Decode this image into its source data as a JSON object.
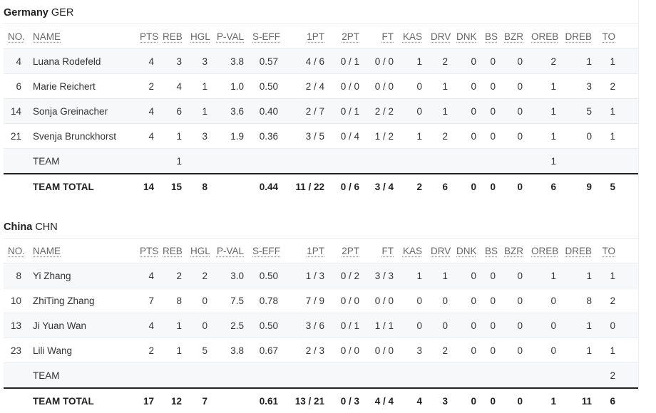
{
  "columns": [
    "NO.",
    "NAME",
    "PTS",
    "REB",
    "HGL",
    "P-VAL",
    "S-EFF",
    "1PT",
    "2PT",
    "FT",
    "KAS",
    "DRV",
    "DNK",
    "BS",
    "BZR",
    "OREB",
    "DREB",
    "TO"
  ],
  "teams": [
    {
      "name": "Germany",
      "code": "GER",
      "rows": [
        [
          "4",
          "Luana Rodefeld",
          "4",
          "3",
          "3",
          "3.8",
          "0.57",
          "4 / 6",
          "0 / 1",
          "0 / 0",
          "1",
          "2",
          "0",
          "0",
          "0",
          "2",
          "1",
          "1"
        ],
        [
          "6",
          "Marie Reichert",
          "2",
          "4",
          "1",
          "1.0",
          "0.50",
          "2 / 4",
          "0 / 0",
          "0 / 0",
          "0",
          "1",
          "0",
          "0",
          "0",
          "1",
          "3",
          "2"
        ],
        [
          "14",
          "Sonja Greinacher",
          "4",
          "6",
          "1",
          "3.6",
          "0.40",
          "2 / 7",
          "0 / 1",
          "2 / 2",
          "0",
          "1",
          "0",
          "0",
          "0",
          "1",
          "5",
          "1"
        ],
        [
          "21",
          "Svenja Brunckhorst",
          "4",
          "1",
          "3",
          "1.9",
          "0.36",
          "3 / 5",
          "0 / 4",
          "1 / 2",
          "1",
          "2",
          "0",
          "0",
          "0",
          "1",
          "0",
          "1"
        ],
        [
          "",
          "TEAM",
          "",
          "1",
          "",
          "",
          "",
          "",
          "",
          "",
          "",
          "",
          "",
          "",
          "",
          "1",
          "",
          ""
        ]
      ],
      "total": [
        "",
        "TEAM TOTAL",
        "14",
        "15",
        "8",
        "",
        "0.44",
        "11 / 22",
        "0 / 6",
        "3 / 4",
        "2",
        "6",
        "0",
        "0",
        "0",
        "6",
        "9",
        "5"
      ]
    },
    {
      "name": "China",
      "code": "CHN",
      "rows": [
        [
          "8",
          "Yi Zhang",
          "4",
          "2",
          "2",
          "3.0",
          "0.50",
          "1 / 3",
          "0 / 2",
          "3 / 3",
          "1",
          "1",
          "0",
          "0",
          "0",
          "1",
          "1",
          "1"
        ],
        [
          "10",
          "ZhiTing Zhang",
          "7",
          "8",
          "0",
          "7.5",
          "0.78",
          "7 / 9",
          "0 / 0",
          "0 / 0",
          "0",
          "0",
          "0",
          "0",
          "0",
          "0",
          "8",
          "2"
        ],
        [
          "13",
          "Ji Yuan Wan",
          "4",
          "1",
          "0",
          "2.5",
          "0.50",
          "3 / 6",
          "0 / 1",
          "1 / 1",
          "0",
          "0",
          "0",
          "0",
          "0",
          "0",
          "1",
          "0"
        ],
        [
          "23",
          "Lili Wang",
          "2",
          "1",
          "5",
          "3.8",
          "0.67",
          "2 / 3",
          "0 / 0",
          "0 / 0",
          "3",
          "2",
          "0",
          "0",
          "0",
          "0",
          "1",
          "1"
        ],
        [
          "",
          "TEAM",
          "",
          "",
          "",
          "",
          "",
          "",
          "",
          "",
          "",
          "",
          "",
          "",
          "",
          "",
          "",
          "2"
        ]
      ],
      "total": [
        "",
        "TEAM TOTAL",
        "17",
        "12",
        "7",
        "",
        "0.61",
        "13 / 21",
        "0 / 3",
        "4 / 4",
        "4",
        "3",
        "0",
        "0",
        "0",
        "1",
        "11",
        "6"
      ]
    }
  ]
}
